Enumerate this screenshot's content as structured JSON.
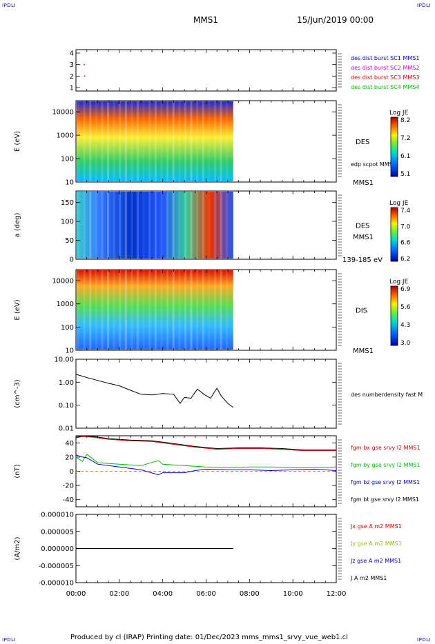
{
  "corner_labels": [
    "IPDLI",
    "IPDLI",
    "IPDLI",
    "IPDLI"
  ],
  "header": {
    "spacecraft": "MMS1",
    "date": "15/Jun/2019 00:00"
  },
  "footer": {
    "text": "Produced by cl (IRAP)   Printing date: 01/Dec/2023   mms_mms1_srvy_vue_web1.cl"
  },
  "colors": {
    "sc1": "#0000cc",
    "sc2": "#cc00cc",
    "sc3": "#cc0000",
    "sc4": "#00bb00",
    "black": "#000000"
  },
  "chart_data": [
    {
      "type": "scatter",
      "ylabel": "",
      "ticks": [
        "1",
        "2",
        "3",
        "4"
      ],
      "ylim": [
        0.7,
        4.3
      ],
      "legend": [
        {
          "name": "des dist burst SC1 MMS1",
          "color": "#0000cc"
        },
        {
          "name": "des dist burst SC2 MMS2",
          "color": "#cc00cc"
        },
        {
          "name": "des dist burst SC3 MMS3",
          "color": "#cc0000"
        },
        {
          "name": "des dist burst SC4 MMS4",
          "color": "#00bb00"
        }
      ],
      "points": [
        {
          "x": 0.38,
          "y": 3.0,
          "color": "#cc0000"
        },
        {
          "x": 0.4,
          "y": 2.0,
          "color": "#cc0000"
        }
      ]
    },
    {
      "type": "heatmap",
      "ylabel": "E (eV)",
      "yscale": "log",
      "ylim": [
        10,
        30000
      ],
      "ticks": [
        "10",
        "100",
        "1000",
        "10000"
      ],
      "label": "DES",
      "overlay": "edp scpot MMS1",
      "sublabel": "MMS1",
      "colorbar": {
        "title": "Log JE",
        "ticks": [
          "8.2",
          "7.2",
          "6.1",
          "5.1"
        ]
      },
      "data_end_hour": 7.25
    },
    {
      "type": "heatmap",
      "ylabel": "a (deg)",
      "ylim": [
        0,
        180
      ],
      "ticks": [
        "0",
        "50",
        "100",
        "150"
      ],
      "label": "DES",
      "sublabel": "MMS1",
      "energy_band": "139-185 eV",
      "colorbar": {
        "title": "Log JE",
        "ticks": [
          "7.4",
          "7.0",
          "6.6",
          "6.2"
        ]
      },
      "data_end_hour": 7.25
    },
    {
      "type": "heatmap",
      "ylabel": "E (eV)",
      "yscale": "log",
      "ylim": [
        10,
        30000
      ],
      "ticks": [
        "10",
        "100",
        "1000",
        "10000"
      ],
      "label": "DIS",
      "sublabel": "MMS1",
      "colorbar": {
        "title": "Log JE",
        "ticks": [
          "6.9",
          "5.6",
          "4.3",
          "3.0"
        ]
      },
      "data_end_hour": 7.25
    },
    {
      "type": "line",
      "ylabel": "(cm^-3)",
      "yscale": "log",
      "ylim": [
        0.01,
        10
      ],
      "ticks": [
        "0.01",
        "0.10",
        "1.00",
        "10.00"
      ],
      "series": [
        {
          "name": "des numberdensity fast M",
          "color": "#000000",
          "x": [
            0,
            0.5,
            1,
            1.5,
            2,
            2.5,
            3,
            3.5,
            4,
            4.5,
            4.8,
            5,
            5.3,
            5.6,
            5.9,
            6.2,
            6.5,
            6.7,
            7,
            7.25
          ],
          "y": [
            2.2,
            1.6,
            1.2,
            0.9,
            0.7,
            0.45,
            0.3,
            0.28,
            0.32,
            0.3,
            0.12,
            0.22,
            0.2,
            0.5,
            0.3,
            0.2,
            0.55,
            0.25,
            0.12,
            0.08
          ]
        }
      ]
    },
    {
      "type": "line",
      "ylabel": "(nT)",
      "ylim": [
        -50,
        50
      ],
      "ticks": [
        "-40",
        "-20",
        "0",
        "20",
        "40"
      ],
      "zero_line": true,
      "series": [
        {
          "name": "fgm bx gse srvy l2 MMS1",
          "color": "#cc0000",
          "x": [
            0,
            0.3,
            0.8,
            1.5,
            2.5,
            3.5,
            4.5,
            5.5,
            6.5,
            7.5,
            8.5,
            9.5,
            10.5,
            11,
            12
          ],
          "y": [
            47,
            49,
            48,
            45,
            43,
            42,
            38,
            34,
            31,
            32,
            32,
            31,
            29,
            29,
            29
          ]
        },
        {
          "name": "fgm by gse srvy l2 MMS1",
          "color": "#00bb00",
          "x": [
            0,
            0.3,
            0.5,
            1,
            2,
            3,
            3.8,
            4,
            5,
            6,
            7,
            8,
            9,
            10,
            11,
            12
          ],
          "y": [
            20,
            14,
            24,
            12,
            10,
            8,
            15,
            10,
            8,
            6,
            5,
            6,
            6,
            5,
            5,
            6
          ]
        },
        {
          "name": "fgm bz gse srvy l2 MMS1",
          "color": "#0000cc",
          "x": [
            0,
            0.3,
            0.5,
            1,
            2,
            3,
            3.8,
            4,
            5,
            5.5,
            6,
            7,
            8,
            9,
            10,
            11,
            12
          ],
          "y": [
            23,
            20,
            19,
            10,
            6,
            2,
            -5,
            -2,
            -2,
            1,
            3,
            2,
            2,
            1,
            2,
            3,
            1
          ]
        },
        {
          "name": "fgm bt gse srvy l2 MMS1",
          "color": "#000000",
          "x": [
            0,
            0.3,
            0.8,
            1.5,
            2.5,
            3.5,
            4.5,
            5.5,
            6.5,
            7.5,
            8.5,
            9.5,
            10.5,
            11,
            12
          ],
          "y": [
            48,
            50,
            49,
            46,
            44,
            43,
            39,
            35,
            32,
            33,
            33,
            32,
            30,
            30,
            30
          ]
        }
      ]
    },
    {
      "type": "line",
      "ylabel": "(A/m2)",
      "ylim": [
        -1e-05,
        1e-05
      ],
      "ticks": [
        "-0.000010",
        "-0.000005",
        "0.000000",
        "0.000005",
        "0.000010"
      ],
      "series": [
        {
          "name": "Jx gse A m2 MMS1",
          "color": "#cc0000"
        },
        {
          "name": "Jy gse A m2 MMS1",
          "color": "#99bb00"
        },
        {
          "name": "Jz gse A m2 MMS1",
          "color": "#0000cc"
        },
        {
          "name": "J A m2 MMS1",
          "color": "#000000",
          "x": [
            0,
            1,
            2,
            3,
            4,
            5,
            6,
            7,
            7.25
          ],
          "y": [
            0,
            0,
            0,
            0,
            0,
            0,
            0,
            0,
            0
          ]
        }
      ]
    },
    {
      "type": "axis",
      "xlabel": "",
      "xlim": [
        0,
        12
      ],
      "ticks": [
        "00:00",
        "02:00",
        "04:00",
        "06:00",
        "08:00",
        "10:00",
        "12:00"
      ]
    }
  ]
}
